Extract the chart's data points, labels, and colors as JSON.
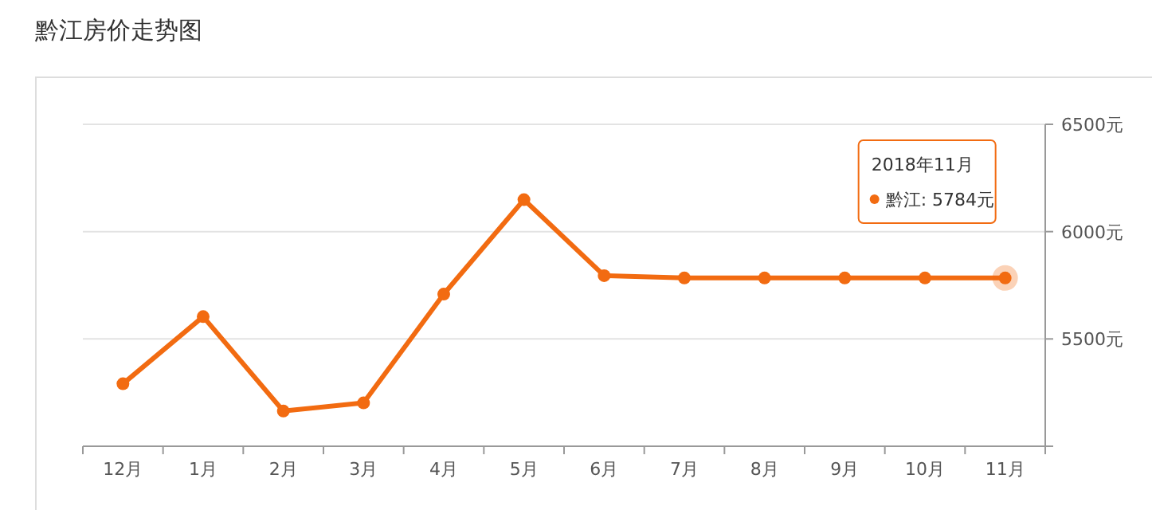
{
  "chart_data": {
    "type": "line",
    "title": "黔江房价走势图",
    "categories": [
      "12月",
      "1月",
      "2月",
      "3月",
      "4月",
      "5月",
      "6月",
      "7月",
      "8月",
      "9月",
      "10月",
      "11月"
    ],
    "series": [
      {
        "color": "#f26b11",
        "values": [
          5291,
          5604,
          5164,
          5202,
          5709,
          6149,
          5795,
          5784,
          5784,
          5784,
          5784,
          5784
        ]
      }
    ],
    "ylim": [
      5000,
      6500
    ],
    "yticks": [
      {
        "value": 5000,
        "label": null
      },
      {
        "value": 5500,
        "label": "5500元"
      },
      {
        "value": 6000,
        "label": "6000元"
      },
      {
        "value": 6500,
        "label": "6500元"
      }
    ],
    "grid": "y",
    "marker": "circle",
    "line_style": "solid",
    "annotations": [
      "2018年11月",
      "黔江: 5784元"
    ]
  }
}
